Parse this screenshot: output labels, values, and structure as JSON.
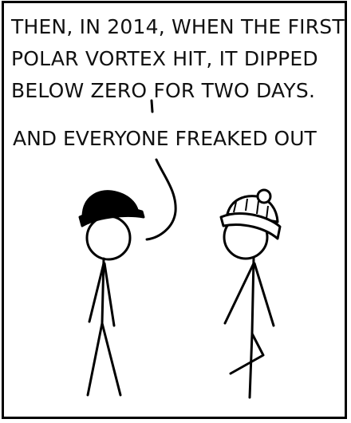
{
  "comic": {
    "caption_lines": [
      "THEN, IN 2014, WHEN THE FIRST",
      "POLAR VORTEX HIT, IT DIPPED",
      "BELOW ZERO FOR TWO DAYS."
    ],
    "speech": "AND EVERYONE FREAKED OUT"
  }
}
